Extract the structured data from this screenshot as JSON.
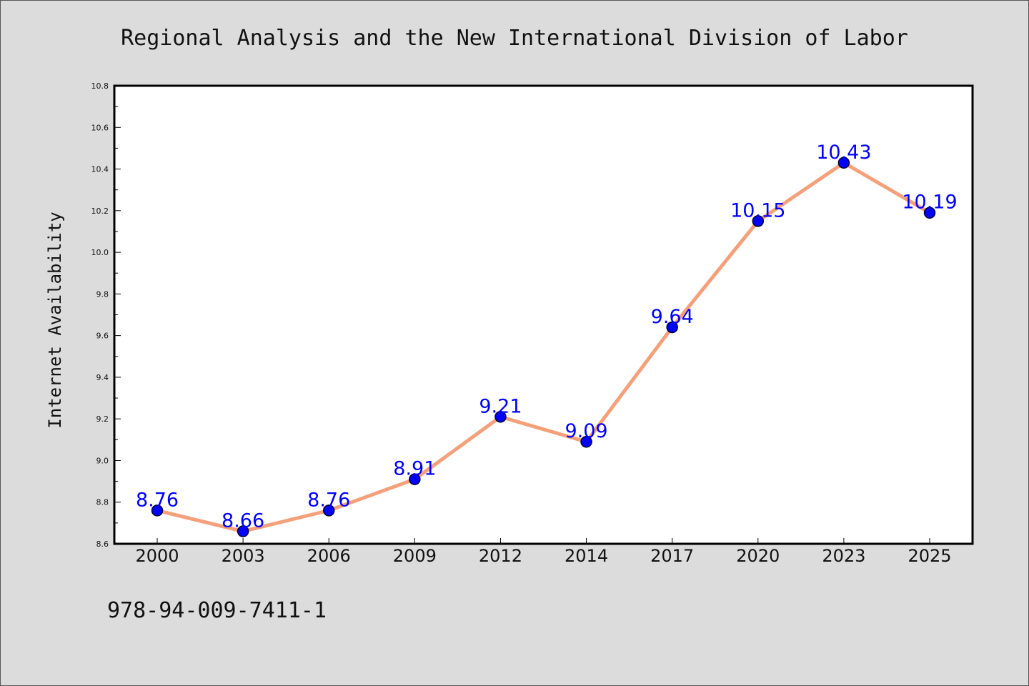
{
  "chart_data": {
    "type": "line",
    "title": "Regional Analysis and the New International Division of Labor",
    "xlabel": "",
    "ylabel": "Internet Availability",
    "categories": [
      "2000",
      "2003",
      "2006",
      "2009",
      "2012",
      "2014",
      "2017",
      "2020",
      "2023",
      "2025"
    ],
    "series": [
      {
        "values": [
          8.76,
          8.66,
          8.76,
          8.91,
          9.21,
          9.09,
          9.64,
          10.15,
          10.43,
          10.19
        ],
        "data_labels": [
          "8.76",
          "8.66",
          "8.76",
          "8.91",
          "9.21",
          "9.09",
          "9.64",
          "10.15",
          "10.43",
          "10.19"
        ]
      }
    ],
    "ylim": [
      8.6,
      10.8
    ],
    "yticks": [
      "8.6",
      "8.8",
      "9.0",
      "9.2",
      "9.4",
      "9.6",
      "9.8",
      "10.0",
      "10.2",
      "10.4",
      "10.6",
      "10.8"
    ],
    "grid": false,
    "colors": {
      "line": "#f4a07a",
      "marker": "#0000ff",
      "marker_edge": "#000033",
      "data_label": "#0000ff",
      "background": "#dcdcdc",
      "plot_background": "#ffffff"
    }
  },
  "footer": {
    "isbn": "978-94-009-7411-1"
  }
}
